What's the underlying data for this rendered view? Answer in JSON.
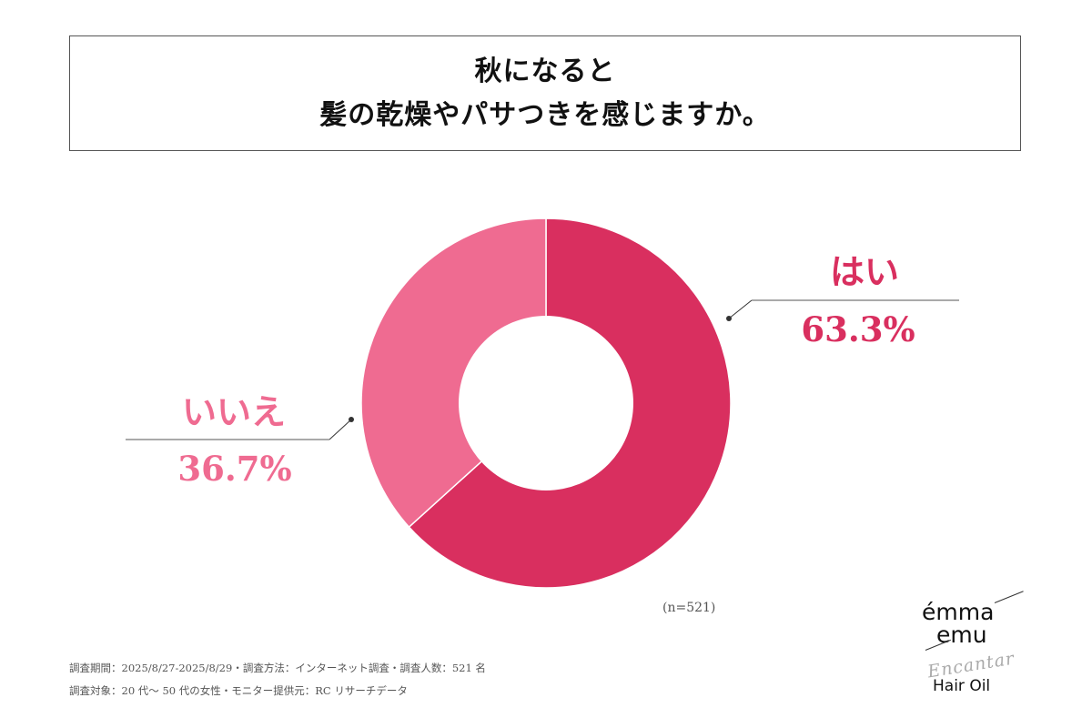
{
  "title": {
    "line1": "秋になると",
    "line2": "髪の乾燥やパサつきを感じますか。"
  },
  "chart_data": {
    "type": "pie",
    "style": "donut",
    "title": "秋になると 髪の乾燥やパサつきを感じますか。",
    "categories": [
      "はい",
      "いいえ"
    ],
    "values": [
      63.3,
      36.7
    ],
    "value_labels": [
      "63.3%",
      "36.7%"
    ],
    "colors": [
      "#d92f5f",
      "#ef6b91"
    ],
    "sample_size": "(n=521)"
  },
  "footer": {
    "line1": "調査期間：2025/8/27-2025/8/29・調査方法：インターネット調査・調査人数：521 名",
    "line2": "調査対象：20 代～ 50 代の女性・モニター提供元：RC リサーチデータ"
  },
  "logo": {
    "brand_line1": "émma",
    "brand_line2": "emu",
    "script": "Encantar",
    "product": "Hair Oil"
  }
}
